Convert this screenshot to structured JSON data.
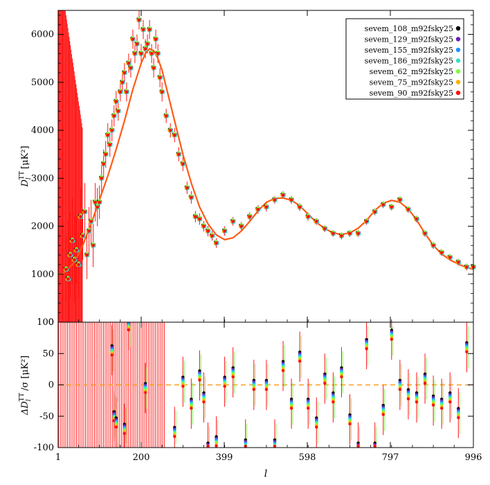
{
  "chart_data": [
    {
      "type": "scatter",
      "panel": "top",
      "ylabel": "D_l^TT [μK²]",
      "ylabel_main": "D",
      "ylabel_sub": "l",
      "ylabel_sup": "TT",
      "ylabel_unit": "[μK²]",
      "xlim": [
        1,
        996
      ],
      "ylim": [
        0,
        6500
      ],
      "yticks": [
        0,
        1000,
        2000,
        3000,
        4000,
        5000,
        6000
      ],
      "best_fit_color": "#ff5a14",
      "theory_curve": [
        [
          2,
          1000
        ],
        [
          10,
          1000
        ],
        [
          20,
          1060
        ],
        [
          40,
          1250
        ],
        [
          60,
          1600
        ],
        [
          80,
          2050
        ],
        [
          100,
          2550
        ],
        [
          120,
          3050
        ],
        [
          140,
          3600
        ],
        [
          160,
          4200
        ],
        [
          180,
          4850
        ],
        [
          200,
          5400
        ],
        [
          210,
          5600
        ],
        [
          220,
          5700
        ],
        [
          230,
          5660
        ],
        [
          240,
          5500
        ],
        [
          250,
          5250
        ],
        [
          260,
          4900
        ],
        [
          280,
          4200
        ],
        [
          300,
          3500
        ],
        [
          320,
          2900
        ],
        [
          340,
          2400
        ],
        [
          360,
          2050
        ],
        [
          380,
          1820
        ],
        [
          400,
          1720
        ],
        [
          420,
          1760
        ],
        [
          440,
          1900
        ],
        [
          460,
          2100
        ],
        [
          480,
          2320
        ],
        [
          500,
          2500
        ],
        [
          520,
          2580
        ],
        [
          540,
          2590
        ],
        [
          560,
          2540
        ],
        [
          580,
          2430
        ],
        [
          600,
          2250
        ],
        [
          620,
          2080
        ],
        [
          640,
          1950
        ],
        [
          660,
          1860
        ],
        [
          680,
          1830
        ],
        [
          700,
          1860
        ],
        [
          720,
          1960
        ],
        [
          740,
          2120
        ],
        [
          760,
          2330
        ],
        [
          780,
          2480
        ],
        [
          800,
          2540
        ],
        [
          820,
          2500
        ],
        [
          840,
          2360
        ],
        [
          860,
          2130
        ],
        [
          880,
          1850
        ],
        [
          900,
          1600
        ],
        [
          920,
          1420
        ],
        [
          940,
          1300
        ],
        [
          960,
          1210
        ],
        [
          980,
          1140
        ],
        [
          996,
          1100
        ]
      ],
      "points": [
        [
          20,
          1100,
          700
        ],
        [
          25,
          900,
          1200
        ],
        [
          30,
          1400,
          900
        ],
        [
          35,
          1700,
          900
        ],
        [
          40,
          1300,
          900
        ],
        [
          45,
          1500,
          700
        ],
        [
          50,
          1200,
          700
        ],
        [
          55,
          2200,
          600
        ],
        [
          60,
          1800,
          500
        ],
        [
          65,
          2300,
          600
        ],
        [
          70,
          1400,
          500
        ],
        [
          75,
          1900,
          500
        ],
        [
          80,
          2100,
          450
        ],
        [
          85,
          1600,
          450
        ],
        [
          90,
          2500,
          400
        ],
        [
          95,
          2400,
          400
        ],
        [
          100,
          2500,
          350
        ],
        [
          105,
          3000,
          300
        ],
        [
          110,
          3300,
          300
        ],
        [
          115,
          3500,
          280
        ],
        [
          120,
          3900,
          250
        ],
        [
          125,
          3700,
          250
        ],
        [
          130,
          4000,
          230
        ],
        [
          135,
          4300,
          220
        ],
        [
          140,
          4600,
          220
        ],
        [
          145,
          4400,
          200
        ],
        [
          150,
          4800,
          200
        ],
        [
          155,
          5000,
          200
        ],
        [
          160,
          5200,
          200
        ],
        [
          165,
          4800,
          200
        ],
        [
          170,
          5400,
          200
        ],
        [
          175,
          5300,
          200
        ],
        [
          180,
          5900,
          200
        ],
        [
          185,
          5600,
          200
        ],
        [
          190,
          5800,
          200
        ],
        [
          195,
          6300,
          200
        ],
        [
          200,
          5600,
          200
        ],
        [
          205,
          6100,
          200
        ],
        [
          210,
          5700,
          200
        ],
        [
          215,
          5800,
          200
        ],
        [
          220,
          6100,
          200
        ],
        [
          225,
          5600,
          200
        ],
        [
          230,
          5300,
          200
        ],
        [
          235,
          5900,
          200
        ],
        [
          240,
          5600,
          200
        ],
        [
          245,
          5100,
          200
        ],
        [
          250,
          4800,
          200
        ],
        [
          260,
          4300,
          150
        ],
        [
          270,
          4000,
          150
        ],
        [
          280,
          3900,
          150
        ],
        [
          290,
          3500,
          150
        ],
        [
          300,
          3300,
          150
        ],
        [
          310,
          2800,
          130
        ],
        [
          320,
          2600,
          130
        ],
        [
          330,
          2200,
          120
        ],
        [
          340,
          2150,
          120
        ],
        [
          350,
          2000,
          110
        ],
        [
          360,
          1900,
          110
        ],
        [
          370,
          1800,
          100
        ],
        [
          380,
          1650,
          100
        ],
        [
          400,
          1900,
          100
        ],
        [
          420,
          2100,
          90
        ],
        [
          440,
          2000,
          90
        ],
        [
          460,
          2200,
          90
        ],
        [
          480,
          2350,
          90
        ],
        [
          500,
          2400,
          90
        ],
        [
          520,
          2550,
          80
        ],
        [
          540,
          2650,
          80
        ],
        [
          560,
          2550,
          80
        ],
        [
          580,
          2400,
          80
        ],
        [
          600,
          2200,
          80
        ],
        [
          620,
          2100,
          70
        ],
        [
          640,
          1950,
          70
        ],
        [
          660,
          1850,
          70
        ],
        [
          680,
          1800,
          70
        ],
        [
          700,
          1850,
          70
        ],
        [
          720,
          1850,
          70
        ],
        [
          740,
          2100,
          70
        ],
        [
          760,
          2300,
          70
        ],
        [
          780,
          2450,
          70
        ],
        [
          800,
          2400,
          70
        ],
        [
          820,
          2550,
          70
        ],
        [
          840,
          2350,
          70
        ],
        [
          860,
          2150,
          70
        ],
        [
          880,
          1850,
          70
        ],
        [
          900,
          1600,
          70
        ],
        [
          920,
          1450,
          70
        ],
        [
          940,
          1350,
          70
        ],
        [
          960,
          1250,
          70
        ],
        [
          980,
          1150,
          70
        ],
        [
          996,
          1150,
          70
        ]
      ],
      "legend": [
        "sevem_108_m92fsky25",
        "sevem_129_m92fsky25",
        "sevem_155_m92fsky25",
        "sevem_186_m92fsky25",
        "sevem_62_m92fsky25",
        "sevem_75_m92fsky25",
        "sevem_90_m92fsky25"
      ],
      "legend_colors": [
        "#000000",
        "#6a1bb8",
        "#1e90ff",
        "#33e0c8",
        "#7cff3a",
        "#ffb000",
        "#ff1010"
      ],
      "legend_placement": "top-right"
    },
    {
      "type": "scatter",
      "panel": "bottom",
      "ylabel": "ΔD_l^TT/σ [μK²]",
      "ylabel_main": "ΔD",
      "ylabel_sub": "l",
      "ylabel_sup": "TT",
      "ylabel_unit": "/σ [μK²]",
      "xlabel": "l",
      "xlim": [
        1,
        996
      ],
      "ylim": [
        -100,
        100
      ],
      "yticks": [
        -100,
        -50,
        0,
        50,
        100
      ],
      "xticks": [
        1,
        200,
        399,
        598,
        797,
        996
      ],
      "zero_line_color": "#ff9a1a",
      "points": [
        [
          130,
          55,
          40
        ],
        [
          135,
          -50,
          40
        ],
        [
          140,
          -60,
          40
        ],
        [
          160,
          -70,
          40
        ],
        [
          170,
          95,
          40
        ],
        [
          210,
          -5,
          40
        ],
        [
          280,
          -75,
          40
        ],
        [
          300,
          5,
          40
        ],
        [
          320,
          -30,
          40
        ],
        [
          340,
          15,
          40
        ],
        [
          350,
          -20,
          40
        ],
        [
          360,
          -100,
          40
        ],
        [
          380,
          -90,
          40
        ],
        [
          400,
          5,
          40
        ],
        [
          420,
          20,
          40
        ],
        [
          450,
          -95,
          40
        ],
        [
          470,
          0,
          40
        ],
        [
          500,
          0,
          40
        ],
        [
          520,
          -95,
          40
        ],
        [
          540,
          30,
          40
        ],
        [
          560,
          -30,
          40
        ],
        [
          580,
          45,
          40
        ],
        [
          600,
          -30,
          40
        ],
        [
          620,
          -60,
          40
        ],
        [
          640,
          10,
          40
        ],
        [
          660,
          -20,
          40
        ],
        [
          680,
          20,
          40
        ],
        [
          700,
          -55,
          40
        ],
        [
          720,
          -100,
          40
        ],
        [
          740,
          65,
          40
        ],
        [
          760,
          -100,
          40
        ],
        [
          780,
          -40,
          40
        ],
        [
          800,
          80,
          40
        ],
        [
          820,
          0,
          40
        ],
        [
          840,
          -15,
          40
        ],
        [
          860,
          -20,
          40
        ],
        [
          880,
          10,
          40
        ],
        [
          900,
          -25,
          40
        ],
        [
          920,
          -30,
          40
        ],
        [
          940,
          -20,
          40
        ],
        [
          960,
          -45,
          40
        ],
        [
          980,
          60,
          40
        ]
      ]
    }
  ]
}
